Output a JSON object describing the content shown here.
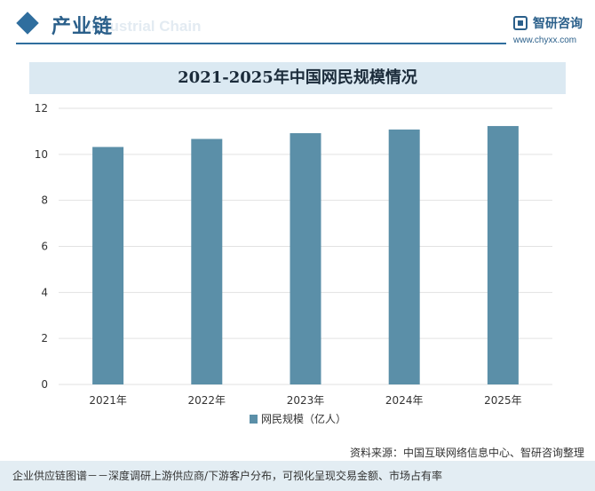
{
  "header": {
    "title": "产业链",
    "subtitle": "Industrial Chain",
    "logo_name": "智研咨询",
    "logo_url": "www.chyxx.com"
  },
  "chart_data": {
    "type": "bar",
    "title": "2021-2025年中国网民规模情况",
    "categories": [
      "2021年",
      "2022年",
      "2023年",
      "2024年",
      "2025年"
    ],
    "series": [
      {
        "name": "网民规模（亿人）",
        "values": [
          10.32,
          10.67,
          10.92,
          11.08,
          11.23
        ]
      }
    ],
    "ylim": [
      0,
      12
    ],
    "yticks": [
      0,
      2,
      4,
      6,
      8,
      10,
      12
    ],
    "grid": true,
    "legend": "bottom",
    "colors": {
      "bar": "#5b8fa8",
      "grid": "#e2e2e2"
    }
  },
  "footer": {
    "source": "资料来源：中国互联网络信息中心、智研咨询整理",
    "caption": "企业供应链图谱－－深度调研上游供应商/下游客户分布，可视化呈现交易金额、市场占有率"
  }
}
